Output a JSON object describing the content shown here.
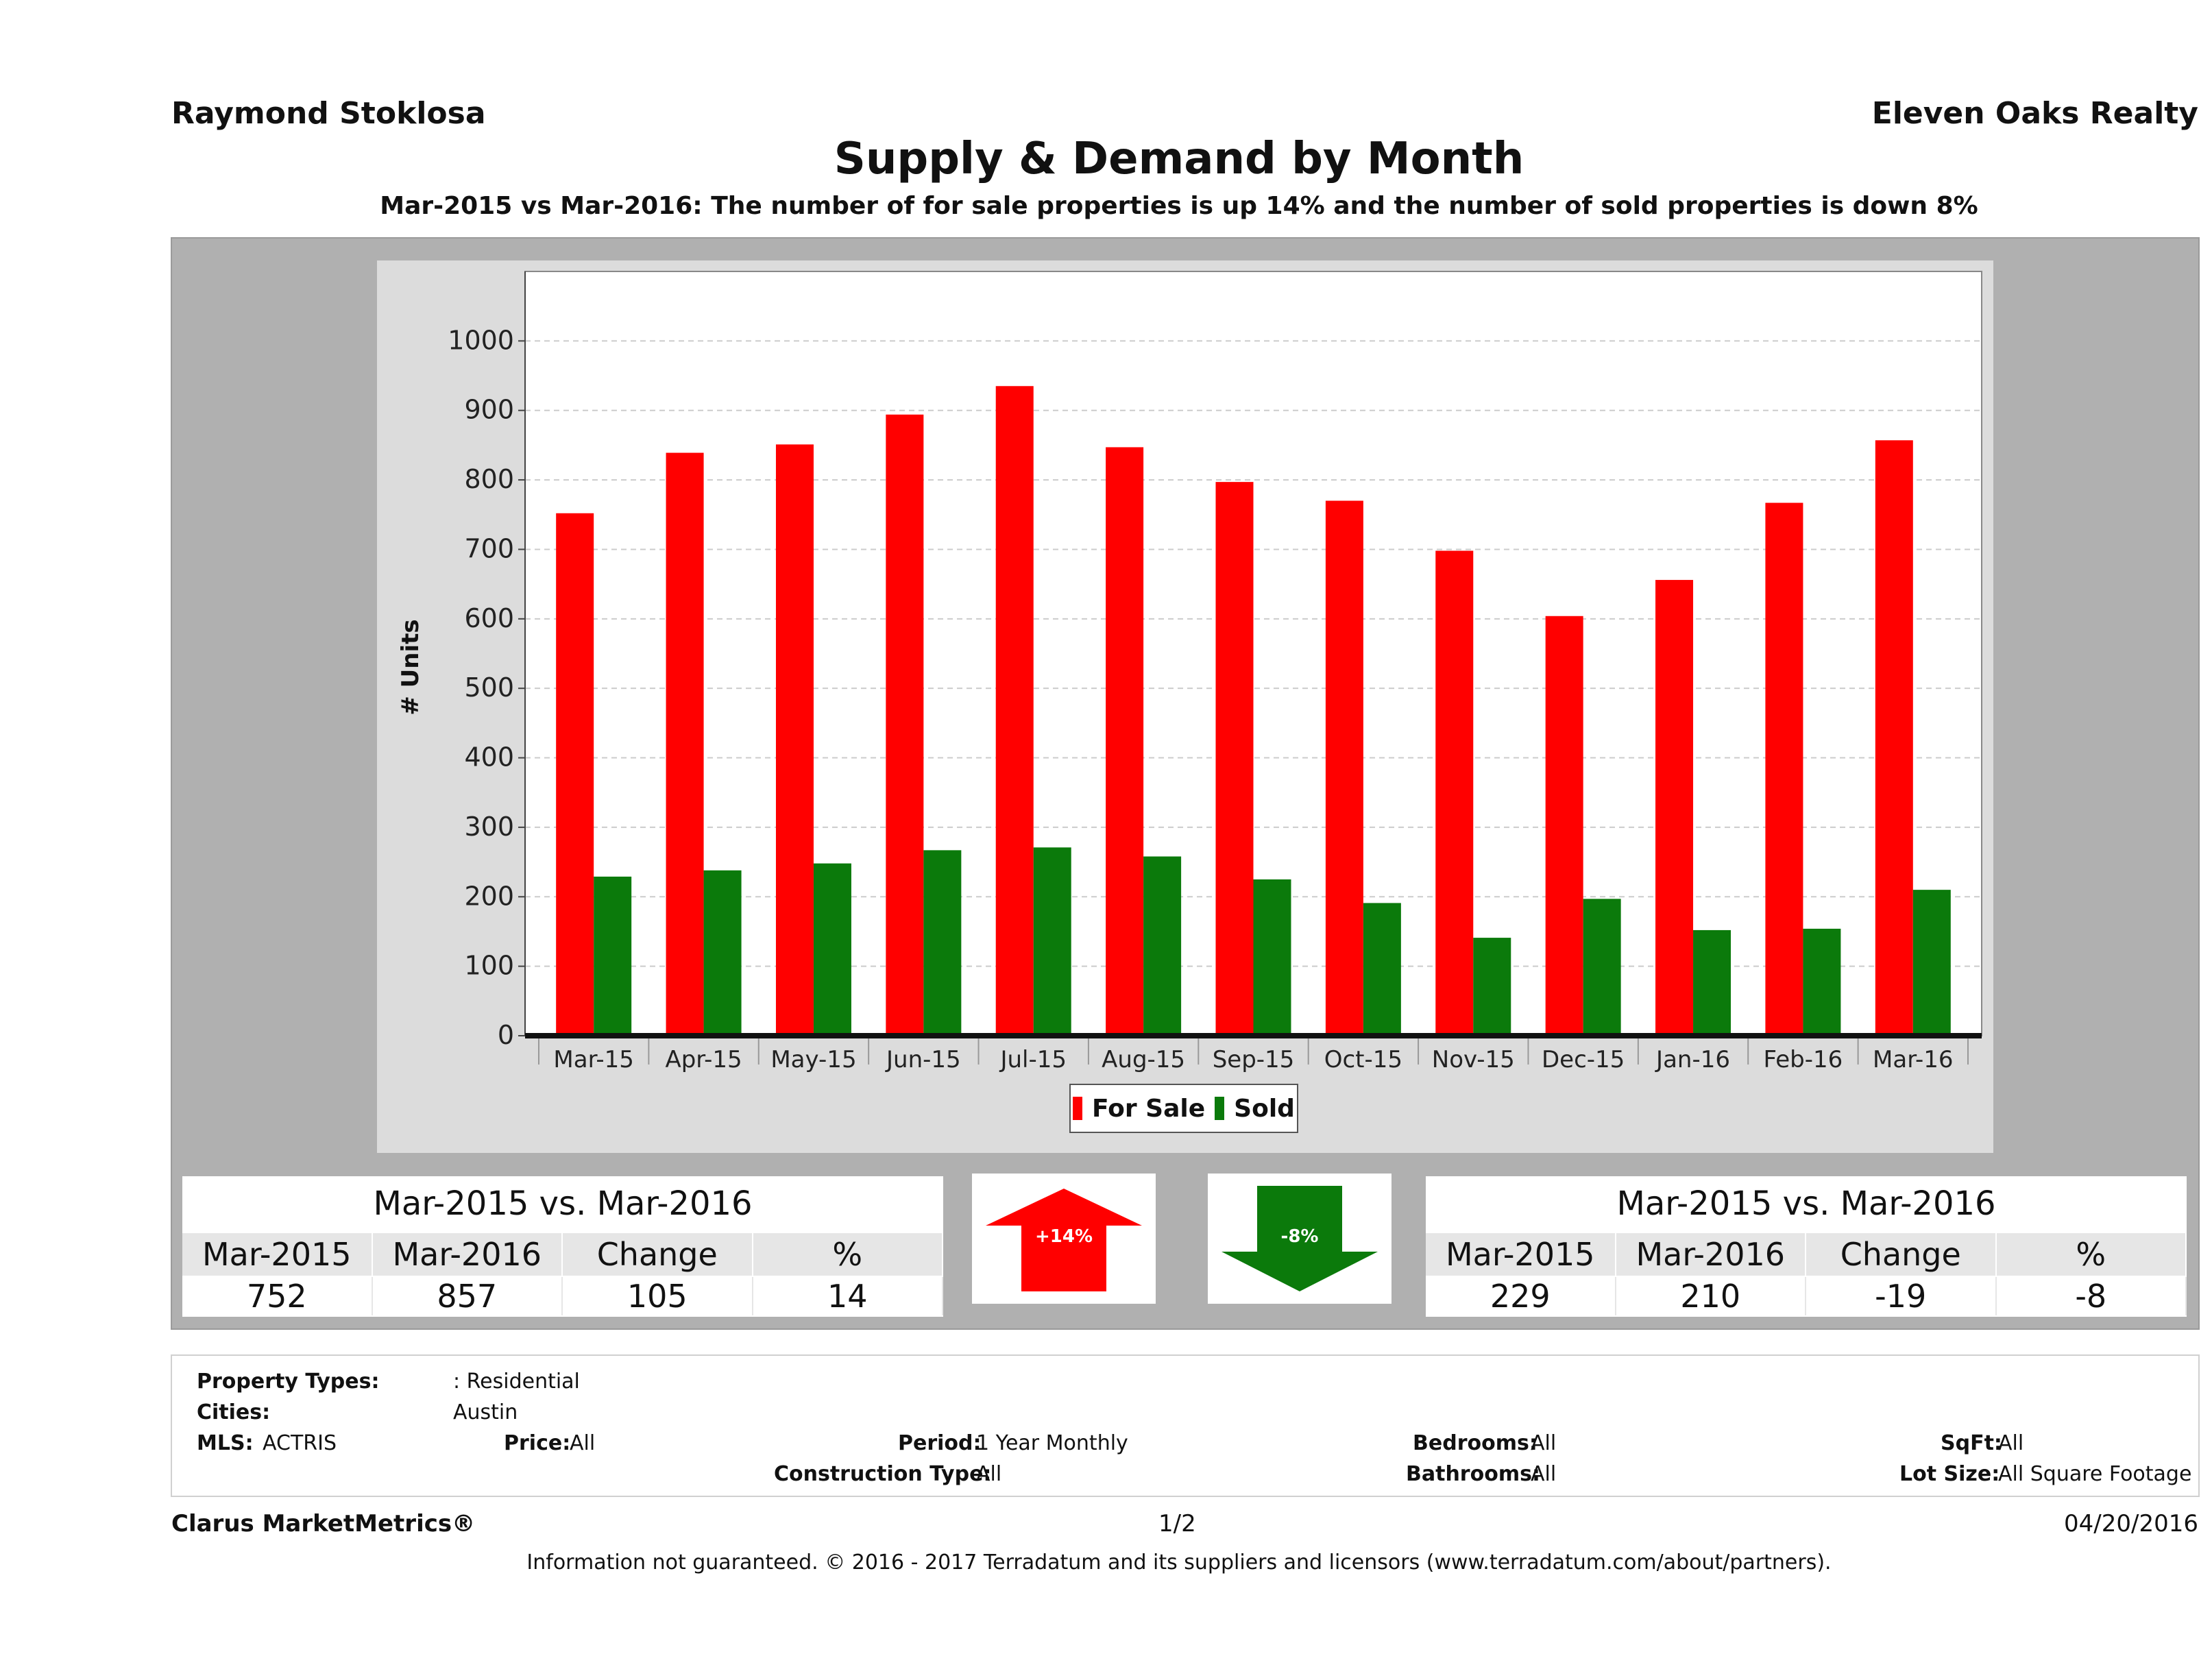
{
  "header": {
    "agent_name": "Raymond Stoklosa",
    "brokerage": "Eleven Oaks Realty",
    "title": "Supply & Demand by Month",
    "subtitle": "Mar-2015 vs Mar-2016: The number of for sale properties is up 14% and the number of sold properties is down 8%"
  },
  "colors": {
    "for_sale": "#ff0000",
    "sold": "#0b7a0b",
    "panel": "#b0b0b0",
    "plot_bg": "#ffffff"
  },
  "chart_data": {
    "type": "bar",
    "ylabel": "# Units",
    "xlabel": "",
    "ylim": [
      0,
      1000
    ],
    "yticks": [
      0,
      100,
      200,
      300,
      400,
      500,
      600,
      700,
      800,
      900,
      1000
    ],
    "categories": [
      "Mar-15",
      "Apr-15",
      "May-15",
      "Jun-15",
      "Jul-15",
      "Aug-15",
      "Sep-15",
      "Oct-15",
      "Nov-15",
      "Dec-15",
      "Jan-16",
      "Feb-16",
      "Mar-16"
    ],
    "series": [
      {
        "name": "For Sale",
        "color": "#ff0000",
        "values": [
          752,
          839,
          851,
          894,
          935,
          847,
          797,
          770,
          698,
          604,
          656,
          767,
          857
        ]
      },
      {
        "name": "Sold",
        "color": "#0b7a0b",
        "values": [
          229,
          238,
          248,
          267,
          271,
          258,
          225,
          191,
          141,
          197,
          152,
          154,
          210
        ]
      }
    ],
    "grid": true,
    "legend_position": "bottom-center"
  },
  "legend": {
    "for_sale_label": "For Sale",
    "sold_label": "Sold"
  },
  "for_sale_table": {
    "title": "Mar-2015 vs. Mar-2016",
    "headers": [
      "Mar-2015",
      "Mar-2016",
      "Change",
      "%"
    ],
    "values": [
      "752",
      "857",
      "105",
      "14"
    ]
  },
  "sold_table": {
    "title": "Mar-2015 vs. Mar-2016",
    "headers": [
      "Mar-2015",
      "Mar-2016",
      "Change",
      "%"
    ],
    "values": [
      "229",
      "210",
      "-19",
      "-8"
    ]
  },
  "arrows": {
    "up_label": "+14%",
    "down_label": "-8%"
  },
  "filters": {
    "property_types_label": "Property Types:",
    "property_types_value": ": Residential",
    "cities_label": "Cities:",
    "cities_value": "Austin",
    "mls_label": "MLS:",
    "mls_value": "ACTRIS",
    "price_label": "Price:",
    "price_value": "All",
    "period_label": "Period:",
    "period_value": "1 Year Monthly",
    "construction_label": "Construction Type:",
    "construction_value": "All",
    "bedrooms_label": "Bedrooms:",
    "bedrooms_value": "All",
    "bathrooms_label": "Bathrooms:",
    "bathrooms_value": "All",
    "sqft_label": "SqFt:",
    "sqft_value": "All",
    "lotsize_label": "Lot Size:",
    "lotsize_value": "All Square Footage"
  },
  "footer": {
    "brand": "Clarus MarketMetrics®",
    "page": "1/2",
    "date": "04/20/2016",
    "disclaimer": "Information not guaranteed. © 2016 - 2017 Terradatum and its suppliers and licensors (www.terradatum.com/about/partners)."
  }
}
